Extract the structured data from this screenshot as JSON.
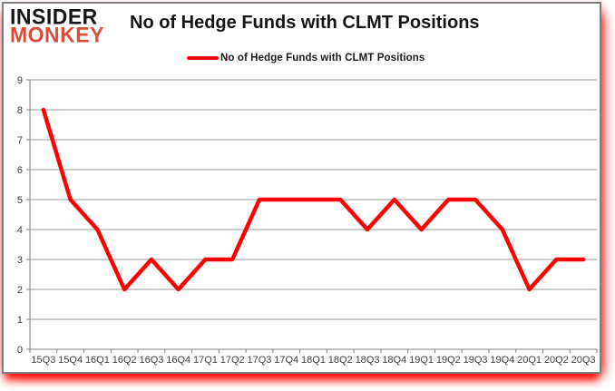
{
  "logo": {
    "line1": "INSIDER",
    "line2": "MONKEY"
  },
  "header": {
    "title": "No of Hedge Funds with CLMT Positions"
  },
  "legend": {
    "label": "No of Hedge Funds with CLMT Positions",
    "marker": "red-line"
  },
  "colors": {
    "series_line": "#ff0000",
    "logo_black": "#151515",
    "logo_red": "#d94e3a",
    "gridline": "#9a9a9a",
    "axis": "#808080",
    "tick_label": "#404040",
    "frame_border": "#7f7f7f",
    "glow": "#ff0000",
    "background": "#ffffff"
  },
  "chart_data": {
    "type": "line",
    "title": "No of Hedge Funds with CLMT Positions",
    "categories": [
      "15Q3",
      "15Q4",
      "16Q1",
      "16Q2",
      "16Q3",
      "16Q4",
      "17Q1",
      "17Q2",
      "17Q3",
      "17Q4",
      "18Q1",
      "18Q2",
      "18Q3",
      "18Q4",
      "19Q1",
      "19Q2",
      "19Q3",
      "19Q4",
      "20Q1",
      "20Q2",
      "20Q3"
    ],
    "series": [
      {
        "name": "No of Hedge Funds with CLMT Positions",
        "color": "#ff0000",
        "values": [
          8,
          5,
          4,
          2,
          3,
          2,
          3,
          3,
          5,
          5,
          5,
          5,
          4,
          5,
          4,
          5,
          5,
          4,
          2,
          3,
          3
        ]
      }
    ],
    "xlabel": "",
    "ylabel": "",
    "ylim": [
      0,
      9
    ],
    "ytick_step": 1,
    "grid": true,
    "legend_position": "top"
  }
}
